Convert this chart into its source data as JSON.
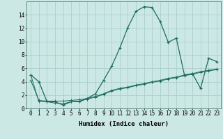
{
  "xlabel": "Humidex (Indice chaleur)",
  "background_color": "#cce8e5",
  "grid_color": "#aacfcc",
  "line_color": "#1d6b5e",
  "x_curve": [
    0,
    1,
    2,
    3,
    4,
    5,
    6,
    7,
    8,
    9,
    10,
    11,
    12,
    13,
    14,
    15,
    16,
    17,
    18,
    19,
    20,
    21,
    22,
    23
  ],
  "y_curve": [
    5.0,
    4.0,
    1.0,
    1.0,
    0.5,
    1.0,
    1.0,
    1.5,
    2.2,
    4.2,
    6.3,
    9.0,
    12.1,
    14.5,
    15.2,
    15.1,
    13.0,
    9.9,
    10.5,
    5.0,
    5.2,
    3.0,
    7.5,
    7.0
  ],
  "x_trend1": [
    0,
    1,
    2,
    3,
    4,
    5,
    6,
    7,
    8,
    9,
    10,
    11,
    12,
    13,
    14,
    15,
    16,
    17,
    18,
    19,
    20,
    21,
    22,
    23
  ],
  "y_trend1": [
    4.2,
    1.2,
    1.1,
    1.1,
    1.1,
    1.2,
    1.3,
    1.5,
    1.8,
    2.2,
    2.7,
    3.0,
    3.2,
    3.5,
    3.7,
    4.0,
    4.2,
    4.5,
    4.7,
    5.0,
    5.2,
    5.5,
    5.7,
    5.9
  ],
  "x_trend2": [
    0,
    1,
    2,
    3,
    4,
    5,
    6,
    7,
    8,
    9,
    10,
    11,
    12,
    13,
    14,
    15,
    16,
    17,
    18,
    19,
    20,
    21,
    22,
    23
  ],
  "y_trend2": [
    5.0,
    1.0,
    1.0,
    0.8,
    0.7,
    1.0,
    1.1,
    1.4,
    1.7,
    2.1,
    2.6,
    2.9,
    3.1,
    3.4,
    3.6,
    3.9,
    4.1,
    4.4,
    4.6,
    4.9,
    5.1,
    5.4,
    5.6,
    5.8
  ],
  "xlim": [
    -0.5,
    23.5
  ],
  "ylim": [
    0,
    16
  ],
  "yticks": [
    0,
    2,
    4,
    6,
    8,
    10,
    12,
    14
  ],
  "xticks": [
    0,
    1,
    2,
    3,
    4,
    5,
    6,
    7,
    8,
    9,
    10,
    11,
    12,
    13,
    14,
    15,
    16,
    17,
    18,
    19,
    20,
    21,
    22,
    23
  ],
  "xlabel_fontsize": 6.5,
  "tick_fontsize": 5.5
}
